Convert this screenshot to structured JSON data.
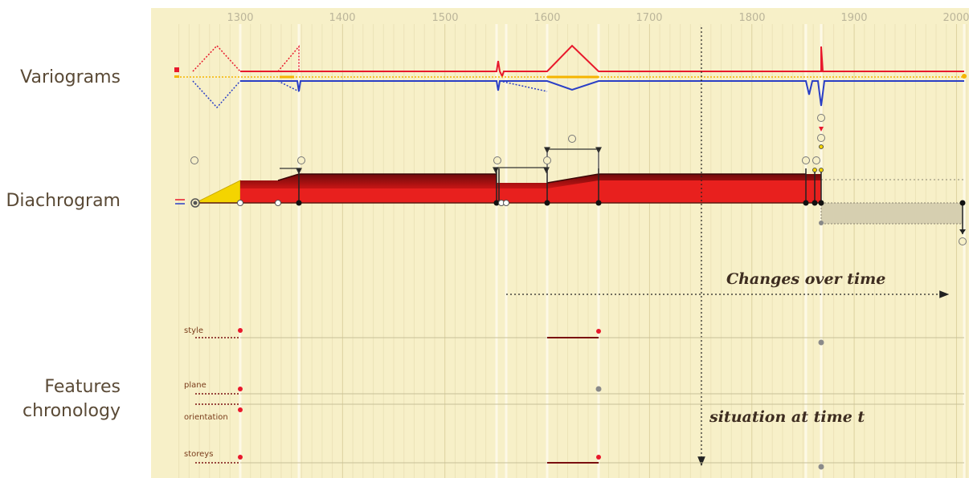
{
  "row_labels": {
    "variograms": "Variograms",
    "diachrogram": "Diachrogram",
    "features_line1": "Features",
    "features_line2": "chronology"
  },
  "timeline": {
    "ticks": [
      "1300",
      "1400",
      "1500",
      "1600",
      "1700",
      "1800",
      "1900",
      "2000"
    ]
  },
  "annotations": {
    "changes": "Changes over time",
    "situation": "situation at time t"
  },
  "features": [
    {
      "name": "style"
    },
    {
      "name": "plane"
    },
    {
      "name": "orientation"
    },
    {
      "name": "storeys"
    }
  ],
  "colors": {
    "panel_bg": "#f7f0c8",
    "grid": "#e6dcae",
    "red": "#e8192c",
    "blue": "#2a3fc6",
    "orange": "#f5b400",
    "dark_red": "#7a0f0f",
    "yellow": "#f4d400"
  }
}
